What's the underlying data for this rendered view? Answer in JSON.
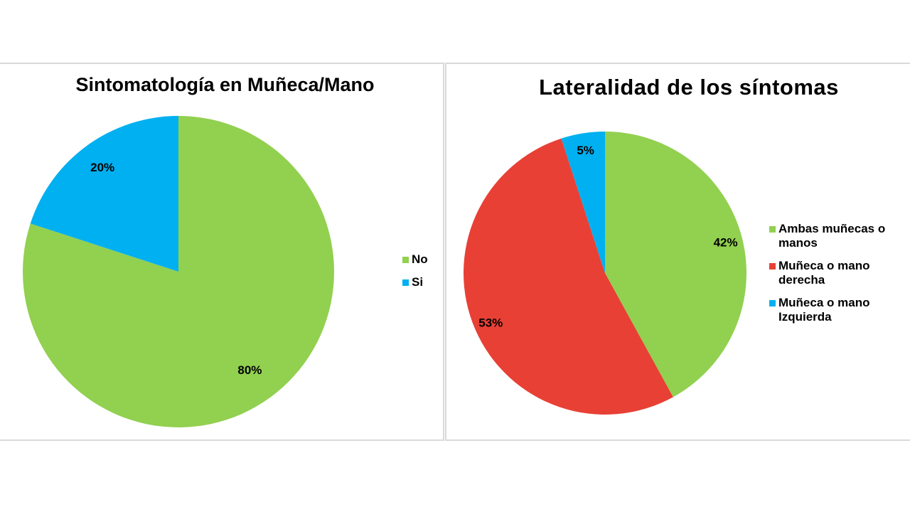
{
  "chart_data": [
    {
      "type": "pie",
      "title": "Sintomatología en Muñeca/Mano",
      "categories": [
        "No",
        "Si"
      ],
      "values": [
        80,
        20
      ],
      "data_labels": [
        "80%",
        "20%"
      ],
      "colors": [
        "#92d050",
        "#00b0f0"
      ],
      "legend": {
        "position": "right",
        "entries": [
          "No",
          "Si"
        ]
      }
    },
    {
      "type": "pie",
      "title": "Lateralidad de los síntomas",
      "categories": [
        "Ambas muñecas o manos",
        "Muñeca o mano derecha",
        "Muñeca o mano Izquierda"
      ],
      "values": [
        42,
        53,
        5
      ],
      "data_labels": [
        "42%",
        "53%",
        "5%"
      ],
      "colors": [
        "#92d050",
        "#e84035",
        "#00b0f0"
      ],
      "legend": {
        "position": "right",
        "entries": [
          "Ambas muñecas o manos",
          "Muñeca o mano derecha",
          "Muñeca o mano Izquierda"
        ]
      }
    }
  ]
}
